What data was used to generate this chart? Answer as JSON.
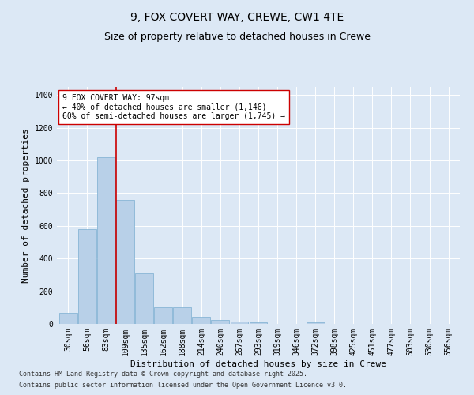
{
  "title1": "9, FOX COVERT WAY, CREWE, CW1 4TE",
  "title2": "Size of property relative to detached houses in Crewe",
  "xlabel": "Distribution of detached houses by size in Crewe",
  "ylabel": "Number of detached properties",
  "categories": [
    "30sqm",
    "56sqm",
    "83sqm",
    "109sqm",
    "135sqm",
    "162sqm",
    "188sqm",
    "214sqm",
    "240sqm",
    "267sqm",
    "293sqm",
    "319sqm",
    "346sqm",
    "372sqm",
    "398sqm",
    "425sqm",
    "451sqm",
    "477sqm",
    "503sqm",
    "530sqm",
    "556sqm"
  ],
  "values": [
    70,
    580,
    1020,
    760,
    310,
    100,
    100,
    45,
    25,
    15,
    10,
    0,
    0,
    10,
    0,
    0,
    0,
    0,
    0,
    0,
    0
  ],
  "bar_color": "#b8d0e8",
  "bar_edge_color": "#7aaed0",
  "vline_x": 2.5,
  "vline_color": "#cc0000",
  "annotation_text": "9 FOX COVERT WAY: 97sqm\n← 40% of detached houses are smaller (1,146)\n60% of semi-detached houses are larger (1,745) →",
  "annotation_box_facecolor": "#ffffff",
  "annotation_box_edgecolor": "#cc0000",
  "ylim": [
    0,
    1450
  ],
  "yticks": [
    0,
    200,
    400,
    600,
    800,
    1000,
    1200,
    1400
  ],
  "footnote1": "Contains HM Land Registry data © Crown copyright and database right 2025.",
  "footnote2": "Contains public sector information licensed under the Open Government Licence v3.0.",
  "bg_color": "#dce8f5",
  "plot_bg_color": "#dce8f5",
  "title1_fontsize": 10,
  "title2_fontsize": 9,
  "tick_fontsize": 7,
  "ylabel_fontsize": 8,
  "xlabel_fontsize": 8,
  "annotation_fontsize": 7,
  "footnote_fontsize": 6
}
